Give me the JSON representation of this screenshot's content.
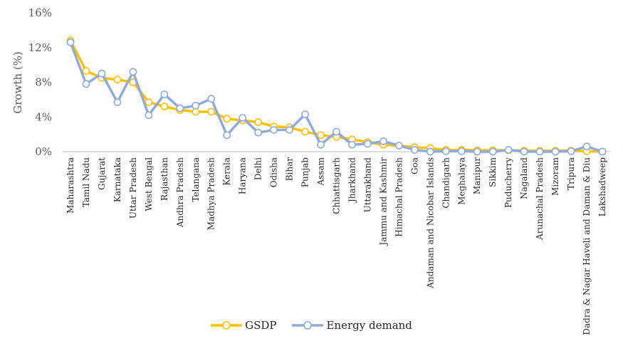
{
  "chart_data": {
    "type": "line",
    "title": "",
    "xlabel": "",
    "ylabel": "Growth (%)",
    "ylim": [
      0,
      16
    ],
    "yticks": [
      "0%",
      "4%",
      "8%",
      "12%",
      "16%"
    ],
    "categories": [
      "Maharashtra",
      "Tamil Nadu",
      "Gujarat",
      "Karnataka",
      "Uttar Pradesh",
      "West Bengal",
      "Rajasthan",
      "Andhra Pradesh",
      "Telangana",
      "Madhya Pradesh",
      "Kerala",
      "Haryana",
      "Delhi",
      "Odisha",
      "Bihar",
      "Punjab",
      "Assam",
      "Chhattisgarh",
      "Jharkhand",
      "Uttarakhand",
      "Jammu and Kashmir",
      "Himachal Pradesh",
      "Goa",
      "Andaman and Nicobar Islands",
      "Chandigarh",
      "Meghalaya",
      "Manipur",
      "Sikkim",
      "Puducherry",
      "Nagaland",
      "Arunachal Pradesh",
      "Mizoram",
      "Tripura",
      "Dadra & Nagar Haveli and Daman & Diu",
      "Lakshadweep"
    ],
    "series": [
      {
        "name": "GSDP",
        "color": "#FFC000",
        "values": [
          12.8,
          9.3,
          8.5,
          8.3,
          8.0,
          5.7,
          5.2,
          4.8,
          4.6,
          4.6,
          3.8,
          3.6,
          3.4,
          2.9,
          2.8,
          2.3,
          1.9,
          1.7,
          1.4,
          1.1,
          0.8,
          0.7,
          0.5,
          0.4,
          0.2,
          0.2,
          0.15,
          0.15,
          0.15,
          0.1,
          0.1,
          0.1,
          0.1,
          0.05,
          0.0
        ]
      },
      {
        "name": "Energy demand",
        "color": "#8FAADC",
        "values": [
          12.6,
          7.8,
          9.0,
          5.7,
          9.2,
          4.2,
          6.6,
          5.0,
          5.3,
          6.1,
          1.9,
          3.9,
          2.2,
          2.5,
          2.5,
          4.3,
          0.8,
          2.3,
          0.8,
          0.9,
          1.2,
          0.7,
          0.2,
          0.0,
          0.05,
          0.05,
          0.0,
          0.0,
          0.2,
          0.0,
          0.0,
          0.0,
          0.05,
          0.6,
          0.0
        ]
      }
    ],
    "legend_position": "bottom"
  }
}
